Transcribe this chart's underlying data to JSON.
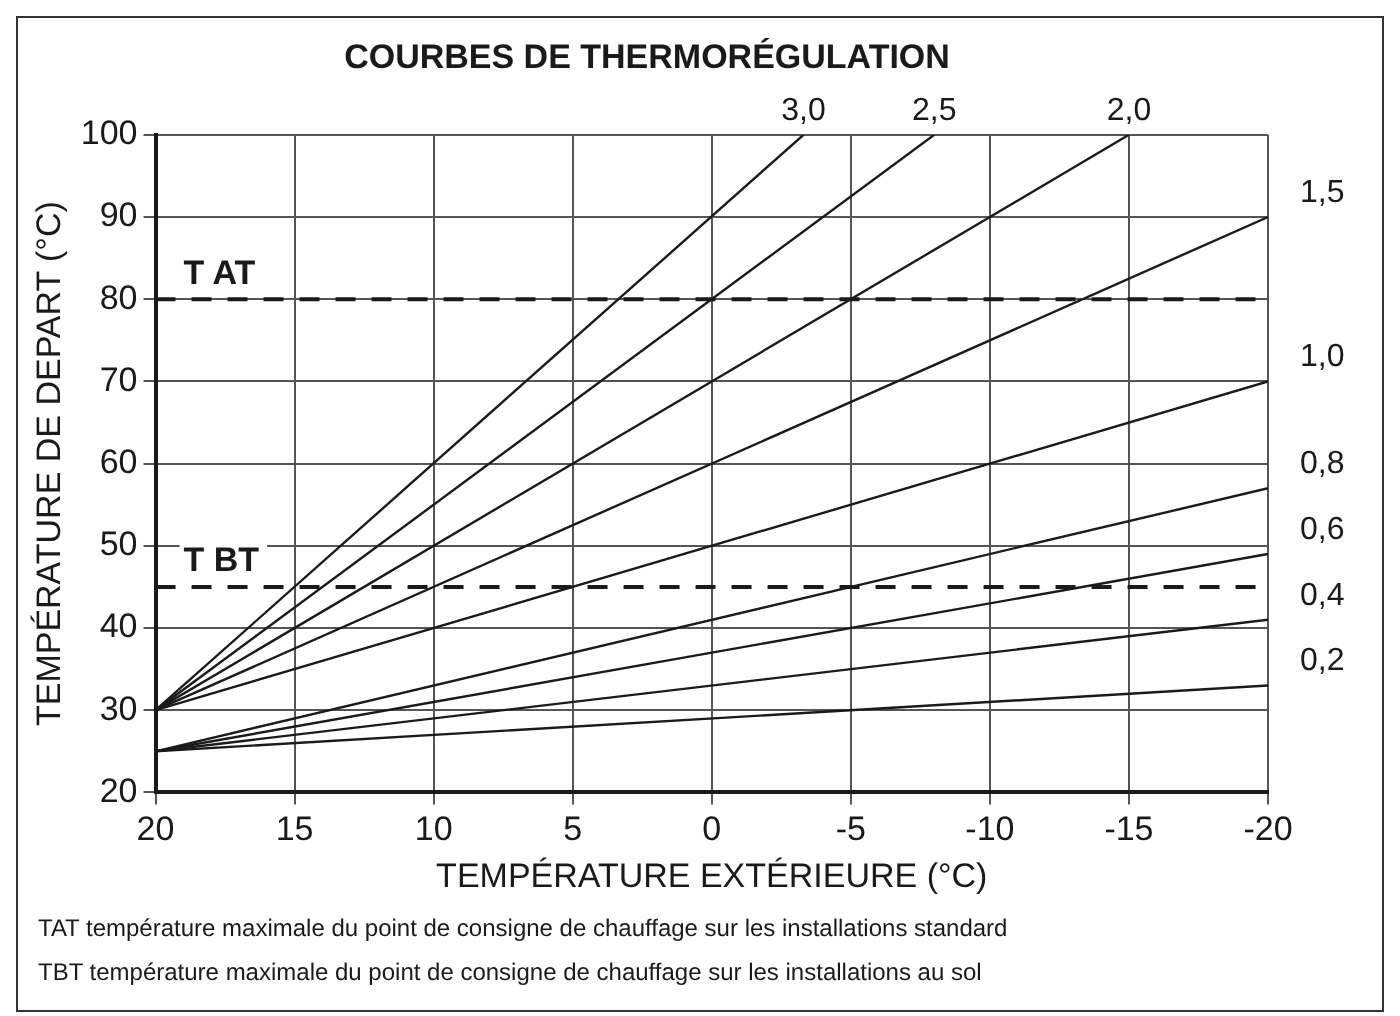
{
  "chart_data": {
    "type": "line",
    "title": "COURBES DE THERMORÉGULATION",
    "xlabel": "TEMPÉRATURE EXTÉRIEURE (°C)",
    "ylabel": "TEMPÉRATURE DE DEPART (°C)",
    "xlim": [
      20,
      -20
    ],
    "xticks": [
      20,
      15,
      10,
      5,
      0,
      -5,
      -10,
      -15,
      -20
    ],
    "ylim": [
      20,
      100
    ],
    "yticks": [
      20,
      30,
      40,
      50,
      60,
      70,
      80,
      90,
      100
    ],
    "grid": true,
    "legend": false,
    "marker": "none",
    "line_style": "solid",
    "series": [
      {
        "name": "3,0",
        "color": "#1a1a1a",
        "x": [
          20,
          -3.3
        ],
        "values": [
          30,
          100
        ]
      },
      {
        "name": "2,5",
        "color": "#1a1a1a",
        "x": [
          20,
          -8
        ],
        "values": [
          30,
          100
        ]
      },
      {
        "name": "2,0",
        "color": "#1a1a1a",
        "x": [
          20,
          -15
        ],
        "values": [
          30,
          100
        ]
      },
      {
        "name": "1,5",
        "color": "#1a1a1a",
        "x": [
          20,
          -20
        ],
        "values": [
          30,
          90
        ]
      },
      {
        "name": "1,0",
        "color": "#1a1a1a",
        "x": [
          20,
          -20
        ],
        "values": [
          30,
          70
        ]
      },
      {
        "name": "0,8",
        "color": "#1a1a1a",
        "x": [
          20,
          -20
        ],
        "values": [
          25,
          57
        ]
      },
      {
        "name": "0,6",
        "color": "#1a1a1a",
        "x": [
          20,
          -20
        ],
        "values": [
          25,
          49
        ]
      },
      {
        "name": "0,4",
        "color": "#1a1a1a",
        "x": [
          20,
          -20
        ],
        "values": [
          25,
          41
        ]
      },
      {
        "name": "0,2",
        "color": "#1a1a1a",
        "x": [
          20,
          -20
        ],
        "values": [
          25,
          33
        ]
      }
    ],
    "ref_lines": [
      {
        "axis": "y",
        "value": 80,
        "label": "T AT",
        "color": "#1a1a1a",
        "line_style": "dashed"
      },
      {
        "axis": "y",
        "value": 45,
        "label": "T BT",
        "color": "#1a1a1a",
        "line_style": "dashed"
      }
    ],
    "annotations": [
      "TAT température maximale du point de consigne de chauffage sur les installations standard",
      "TBT température maximale du point de consigne de chauffage sur les installations au sol"
    ]
  }
}
